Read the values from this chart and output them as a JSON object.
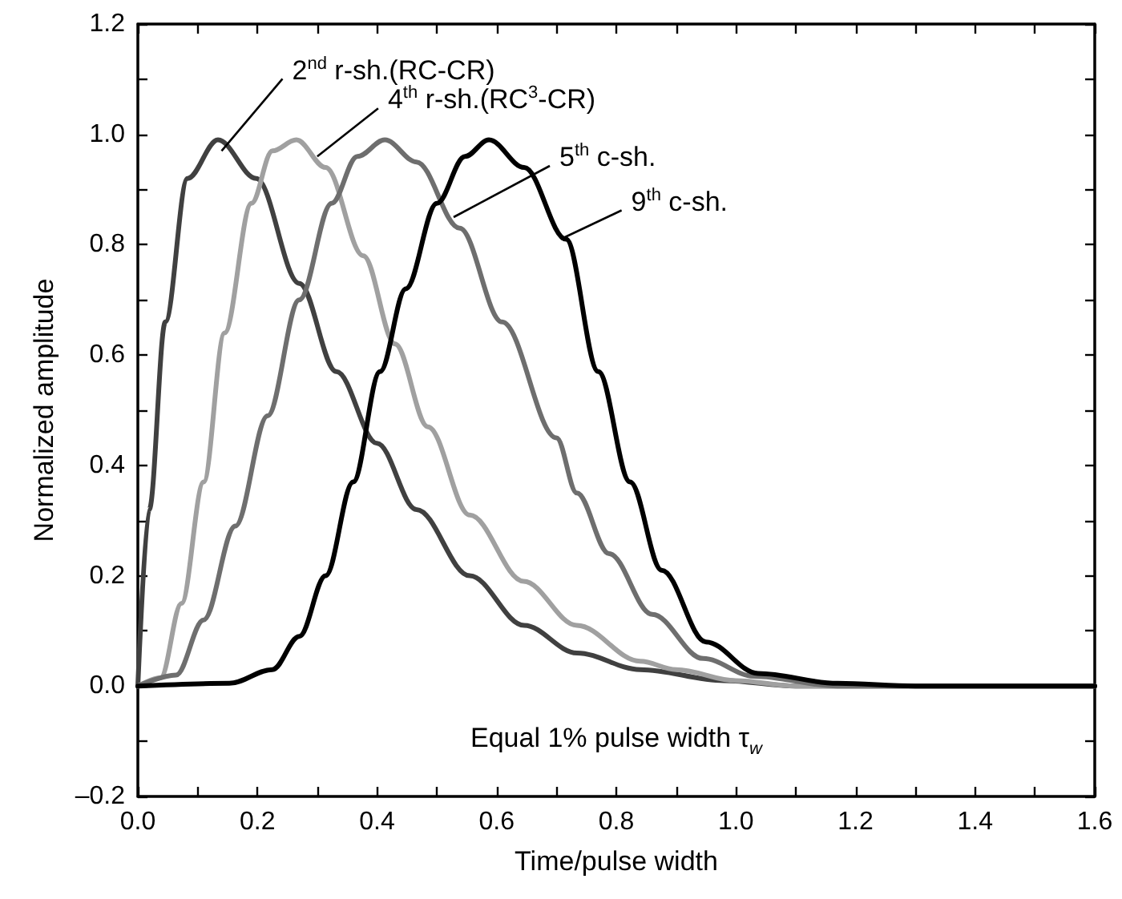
{
  "chart_data": {
    "type": "line",
    "xlabel": "Time/pulse width",
    "ylabel": "Normalized amplitude",
    "xlim": [
      0,
      1.6
    ],
    "ylim": [
      -0.2,
      1.2
    ],
    "xticks": [
      {
        "value": 0,
        "label": "0.0"
      },
      {
        "value": 0.1,
        "label": null
      },
      {
        "value": 0.2,
        "label": "0.2"
      },
      {
        "value": 0.3,
        "label": null
      },
      {
        "value": 0.4,
        "label": "0.4"
      },
      {
        "value": 0.5,
        "label": null
      },
      {
        "value": 0.6,
        "label": "0.6"
      },
      {
        "value": 0.7,
        "label": null
      },
      {
        "value": 0.8,
        "label": "0.8"
      },
      {
        "value": 0.9,
        "label": null
      },
      {
        "value": 1.0,
        "label": "1.0"
      },
      {
        "value": 1.1,
        "label": null
      },
      {
        "value": 1.2,
        "label": "1.2"
      },
      {
        "value": 1.3,
        "label": null
      },
      {
        "value": 1.4,
        "label": "1.4"
      },
      {
        "value": 1.5,
        "label": null
      },
      {
        "value": 1.6,
        "label": "1.6"
      }
    ],
    "yticks": [
      {
        "value": -0.2,
        "label": "–0.2"
      },
      {
        "value": -0.1,
        "label": null
      },
      {
        "value": 0,
        "label": "0.0"
      },
      {
        "value": 0.1,
        "label": null
      },
      {
        "value": 0.2,
        "label": "0.2"
      },
      {
        "value": 0.3,
        "label": null
      },
      {
        "value": 0.4,
        "label": "0.4"
      },
      {
        "value": 0.5,
        "label": null
      },
      {
        "value": 0.6,
        "label": "0.6"
      },
      {
        "value": 0.7,
        "label": null
      },
      {
        "value": 0.8,
        "label": "0.8"
      },
      {
        "value": 0.9,
        "label": null
      },
      {
        "value": 1.0,
        "label": "1.0"
      },
      {
        "value": 1.1,
        "label": null
      },
      {
        "value": 1.2,
        "label": "1.2"
      }
    ],
    "grid": false,
    "marker": "none",
    "line_style": "solid",
    "series": [
      {
        "color": "#404040",
        "x": [
          0,
          0.019,
          0.046,
          0.083,
          0.134,
          0.198,
          0.27,
          0.332,
          0.4,
          0.466,
          0.555,
          0.646,
          0.734,
          0.84,
          0.98,
          1.1,
          1.3,
          1.6
        ],
        "values": [
          0,
          0.32,
          0.66,
          0.92,
          0.99,
          0.92,
          0.73,
          0.57,
          0.44,
          0.32,
          0.2,
          0.11,
          0.06,
          0.03,
          0.01,
          0,
          0,
          0
        ]
      },
      {
        "color": "#a0a0a0",
        "x": [
          0,
          0.038,
          0.073,
          0.11,
          0.145,
          0.19,
          0.225,
          0.265,
          0.314,
          0.377,
          0.43,
          0.485,
          0.555,
          0.645,
          0.734,
          0.84,
          0.9,
          1.0,
          1.1,
          1.3,
          1.6
        ],
        "values": [
          0,
          0.015,
          0.15,
          0.37,
          0.64,
          0.875,
          0.97,
          0.99,
          0.94,
          0.78,
          0.62,
          0.47,
          0.31,
          0.19,
          0.11,
          0.045,
          0.03,
          0.01,
          0,
          0,
          0
        ]
      },
      {
        "color": "#6e6e6e",
        "x": [
          0,
          0.064,
          0.11,
          0.163,
          0.217,
          0.27,
          0.324,
          0.367,
          0.413,
          0.466,
          0.538,
          0.609,
          0.7,
          0.734,
          0.788,
          0.86,
          0.945,
          1.03,
          1.17,
          1.3,
          1.6
        ],
        "values": [
          0,
          0.02,
          0.12,
          0.29,
          0.49,
          0.7,
          0.875,
          0.96,
          0.99,
          0.95,
          0.83,
          0.66,
          0.45,
          0.35,
          0.24,
          0.13,
          0.05,
          0.018,
          0,
          0,
          0
        ]
      },
      {
        "color": "#000000",
        "x": [
          0,
          0.153,
          0.225,
          0.27,
          0.314,
          0.36,
          0.405,
          0.448,
          0.5,
          0.547,
          0.587,
          0.646,
          0.716,
          0.77,
          0.823,
          0.876,
          0.95,
          1.037,
          1.17,
          1.3,
          1.6
        ],
        "values": [
          0,
          0.005,
          0.03,
          0.09,
          0.2,
          0.37,
          0.57,
          0.72,
          0.875,
          0.96,
          0.99,
          0.94,
          0.81,
          0.57,
          0.37,
          0.21,
          0.08,
          0.023,
          0.005,
          0,
          0
        ]
      }
    ],
    "annotations": [
      {
        "text": "2$^{nd}$ r-sh.(RC-CR)",
        "x": 0.14,
        "y": 0.97
      },
      {
        "text": "4$^{th}$ r-sh.(RC$^{3}$-CR)",
        "x": 0.3,
        "y": 0.96
      },
      {
        "text": "5$^{th}$ c-sh.",
        "x": 0.528,
        "y": 0.85
      },
      {
        "text": "9$^{th}$ c-sh.",
        "x": 0.707,
        "y": 0.81
      },
      "Equal 1% pulse width τ$_{w}$"
    ]
  }
}
